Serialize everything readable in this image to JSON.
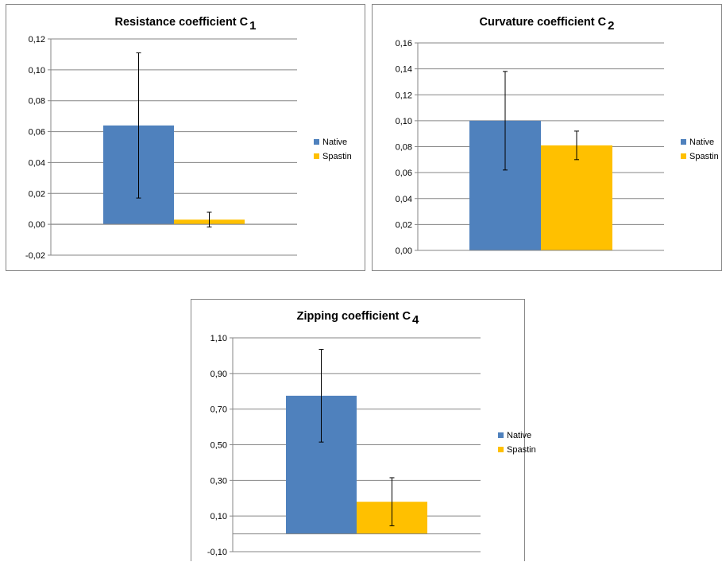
{
  "colors": {
    "native": "#4f81bd",
    "spastin": "#ffc000",
    "grid": "#868686",
    "error_bar": "#000000"
  },
  "chart_data": [
    {
      "type": "bar",
      "title": "Resistance coefficient C",
      "title_subscript": "1",
      "categories": [
        ""
      ],
      "series": [
        {
          "name": "Native",
          "values": [
            0.064
          ],
          "error": [
            0.047
          ]
        },
        {
          "name": "Spastin",
          "values": [
            0.003
          ],
          "error": [
            0.0048
          ]
        }
      ],
      "ylim": [
        -0.02,
        0.12
      ],
      "yticks": [
        -0.02,
        0.0,
        0.02,
        0.04,
        0.06,
        0.08,
        0.1,
        0.12
      ],
      "ytick_labels": [
        "-0,02",
        "0,00",
        "0,02",
        "0,04",
        "0,06",
        "0,08",
        "0,10",
        "0,12"
      ],
      "grid": true,
      "legend": "right"
    },
    {
      "type": "bar",
      "title": "Curvature coefficient C",
      "title_subscript": "2",
      "categories": [
        ""
      ],
      "series": [
        {
          "name": "Native",
          "values": [
            0.1
          ],
          "error": [
            0.038
          ]
        },
        {
          "name": "Spastin",
          "values": [
            0.081
          ],
          "error": [
            0.011
          ]
        }
      ],
      "ylim": [
        0.0,
        0.16
      ],
      "yticks": [
        0.0,
        0.02,
        0.04,
        0.06,
        0.08,
        0.1,
        0.12,
        0.14,
        0.16
      ],
      "ytick_labels": [
        "0,00",
        "0,02",
        "0,04",
        "0,06",
        "0,08",
        "0,10",
        "0,12",
        "0,14",
        "0,16"
      ],
      "grid": true,
      "legend": "right"
    },
    {
      "type": "bar",
      "title": "Zipping coefficient  C",
      "title_subscript": "4",
      "categories": [
        ""
      ],
      "series": [
        {
          "name": "Native",
          "values": [
            0.775
          ],
          "error": [
            0.26
          ]
        },
        {
          "name": "Spastin",
          "values": [
            0.18
          ],
          "error": [
            0.135
          ]
        }
      ],
      "ylim": [
        -0.1,
        1.1
      ],
      "yticks": [
        -0.1,
        0.1,
        0.3,
        0.5,
        0.7,
        0.9,
        1.1
      ],
      "ytick_labels": [
        "-0,10",
        "0,10",
        "0,30",
        "0,50",
        "0,70",
        "0,90",
        "1,10"
      ],
      "grid": true,
      "legend": "right"
    }
  ]
}
